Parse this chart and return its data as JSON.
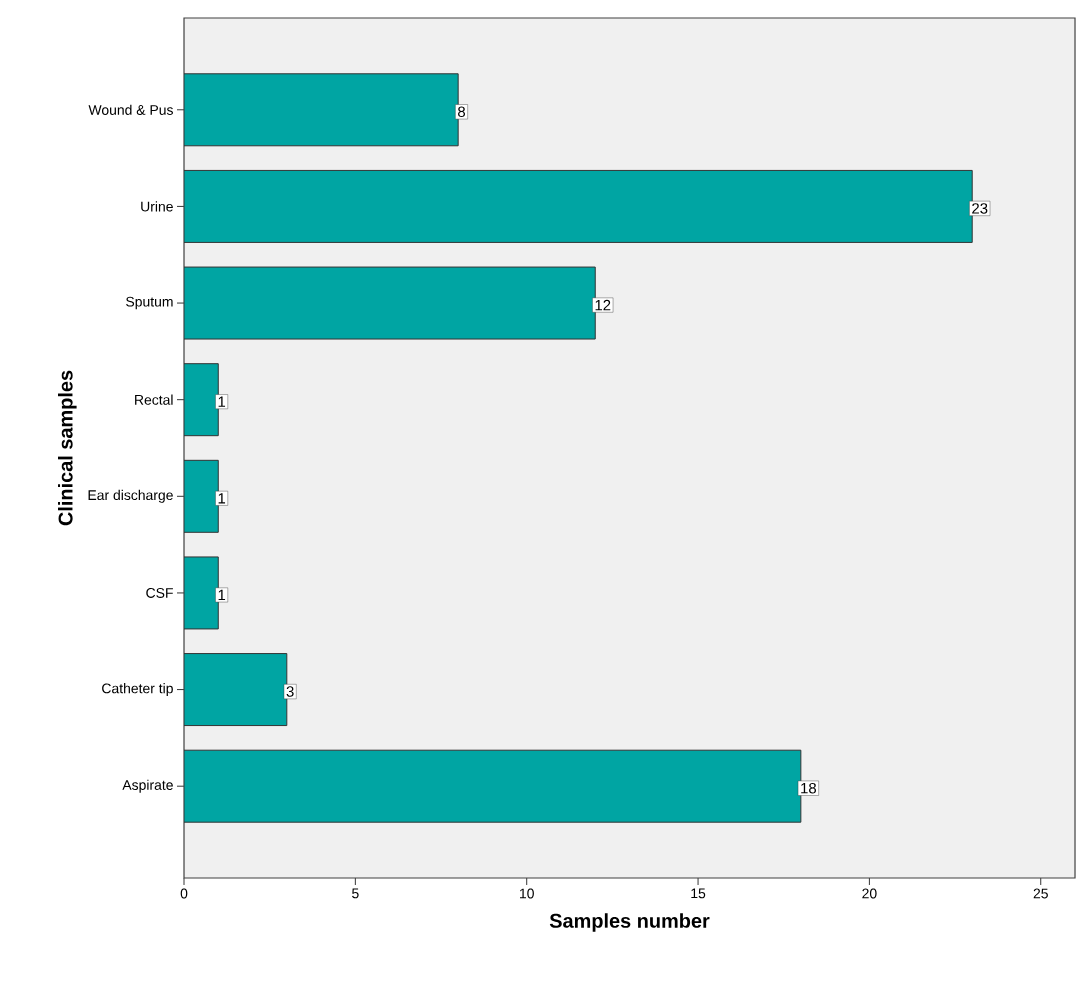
{
  "chart_data": {
    "type": "bar",
    "orientation": "horizontal",
    "xlabel": "Samples number",
    "ylabel": "Clinical samples",
    "categories": [
      "Wound & Pus",
      "Urine",
      "Sputum",
      "Rectal",
      "Ear discharge",
      "CSF",
      "Catheter tip",
      "Aspirate"
    ],
    "values": [
      8,
      23,
      12,
      1,
      1,
      1,
      3,
      18
    ],
    "color": "#00a5a3",
    "xlim": [
      0,
      26
    ],
    "xticks": [
      0,
      5,
      10,
      15,
      20,
      25
    ],
    "data_labels": true
  }
}
